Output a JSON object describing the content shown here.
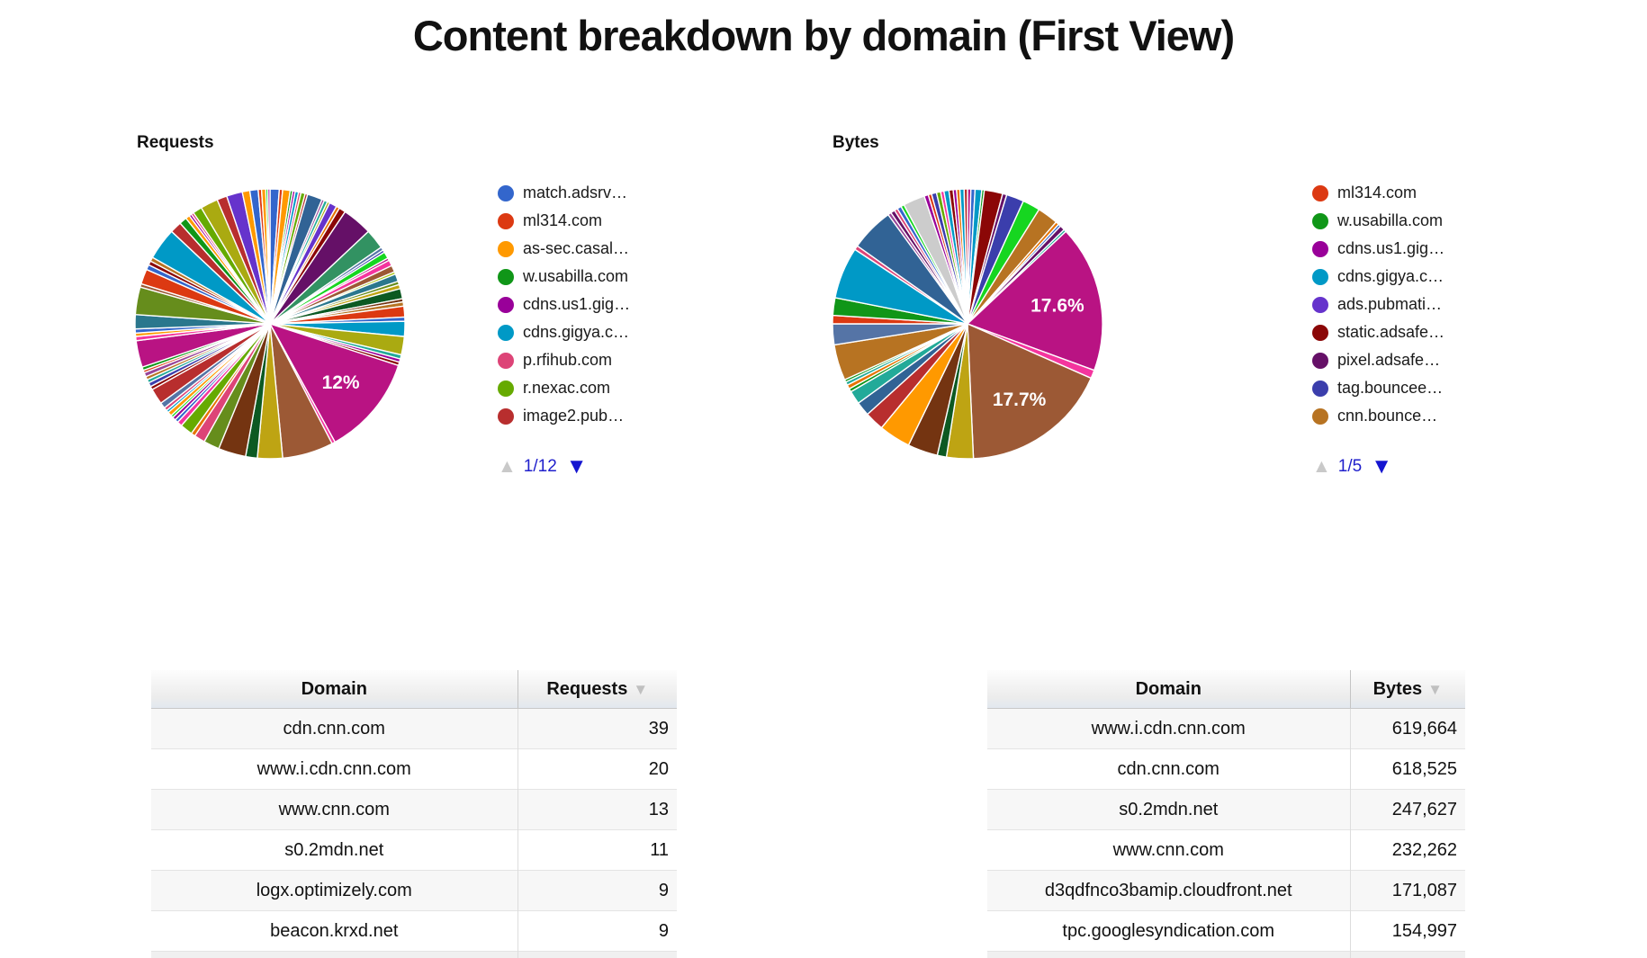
{
  "page": {
    "title": "Content breakdown by domain (First View)"
  },
  "icons": {
    "sort": "▼",
    "prev": "▲",
    "next": "▼"
  },
  "chart_data": [
    {
      "type": "pie",
      "id": "requests",
      "title": "Requests",
      "legend": {
        "page": "1/12",
        "items": [
          {
            "label": "match.adsrv…",
            "color": "#3366CC"
          },
          {
            "label": "ml314.com",
            "color": "#DC3912"
          },
          {
            "label": "as-sec.casal…",
            "color": "#FF9900"
          },
          {
            "label": "w.usabilla.com",
            "color": "#109618"
          },
          {
            "label": "cdns.us1.gig…",
            "color": "#990099"
          },
          {
            "label": "cdns.gigya.c…",
            "color": "#0099C6"
          },
          {
            "label": "p.rfihub.com",
            "color": "#DD4477"
          },
          {
            "label": "r.nexac.com",
            "color": "#66AA00"
          },
          {
            "label": "image2.pub…",
            "color": "#B82E2E"
          }
        ]
      },
      "slices": [
        {
          "v": 1.1,
          "c": "#3366CC"
        },
        {
          "v": 0.4,
          "c": "#DC3912"
        },
        {
          "v": 0.9,
          "c": "#FF9900"
        },
        {
          "v": 0.3,
          "c": "#109618"
        },
        {
          "v": 0.3,
          "c": "#990099"
        },
        {
          "v": 0.4,
          "c": "#0099C6"
        },
        {
          "v": 0.3,
          "c": "#DD4477"
        },
        {
          "v": 0.5,
          "c": "#66AA00"
        },
        {
          "v": 0.3,
          "c": "#B82E2E"
        },
        {
          "v": 1.8,
          "c": "#316395"
        },
        {
          "v": 0.3,
          "c": "#994499"
        },
        {
          "v": 0.4,
          "c": "#22AA99"
        },
        {
          "v": 0.3,
          "c": "#AAAA11"
        },
        {
          "v": 0.9,
          "c": "#6633CC"
        },
        {
          "v": 0.4,
          "c": "#E67300"
        },
        {
          "v": 0.8,
          "c": "#8B0707"
        },
        {
          "v": 3.6,
          "c": "#651067"
        },
        {
          "v": 2.4,
          "c": "#329262"
        },
        {
          "v": 0.4,
          "c": "#5574A6"
        },
        {
          "v": 0.3,
          "c": "#3B3EAC"
        },
        {
          "v": 0.8,
          "c": "#16D620"
        },
        {
          "v": 0.3,
          "c": "#B91383"
        },
        {
          "v": 0.7,
          "c": "#F4359E"
        },
        {
          "v": 0.8,
          "c": "#9C5935"
        },
        {
          "v": 0.3,
          "c": "#A9C413"
        },
        {
          "v": 0.9,
          "c": "#2A778D"
        },
        {
          "v": 0.4,
          "c": "#668D1C"
        },
        {
          "v": 0.5,
          "c": "#BEA413"
        },
        {
          "v": 1.2,
          "c": "#0C5922"
        },
        {
          "v": 0.4,
          "c": "#743411"
        },
        {
          "v": 0.5,
          "c": "#B77322"
        },
        {
          "v": 1.3,
          "c": "#DC3912"
        },
        {
          "v": 0.5,
          "c": "#3366CC"
        },
        {
          "v": 1.8,
          "c": "#0099C6"
        },
        {
          "v": 2.2,
          "c": "#AAAA11"
        },
        {
          "v": 0.5,
          "c": "#22AA99"
        },
        {
          "v": 0.4,
          "c": "#990099"
        },
        {
          "v": 0.4,
          "c": "#8B0707"
        },
        {
          "v": 12.0,
          "c": "#B91383",
          "label": "12%"
        },
        {
          "v": 0.4,
          "c": "#F4359E"
        },
        {
          "v": 6.1,
          "c": "#9C5935"
        },
        {
          "v": 3.0,
          "c": "#BEA413"
        },
        {
          "v": 1.4,
          "c": "#0C5922"
        },
        {
          "v": 3.3,
          "c": "#743411"
        },
        {
          "v": 1.9,
          "c": "#668D1C"
        },
        {
          "v": 1.3,
          "c": "#DD4477"
        },
        {
          "v": 0.5,
          "c": "#E67300"
        },
        {
          "v": 1.5,
          "c": "#66AA00"
        },
        {
          "v": 0.6,
          "c": "#F4359E"
        },
        {
          "v": 0.4,
          "c": "#3366CC"
        },
        {
          "v": 0.4,
          "c": "#990099"
        },
        {
          "v": 0.3,
          "c": "#16D620"
        },
        {
          "v": 0.5,
          "c": "#FF9900"
        },
        {
          "v": 0.3,
          "c": "#0099C6"
        },
        {
          "v": 0.4,
          "c": "#DD4477"
        },
        {
          "v": 0.7,
          "c": "#5574A6"
        },
        {
          "v": 1.9,
          "c": "#B82E2E"
        },
        {
          "v": 0.4,
          "c": "#8B0707"
        },
        {
          "v": 0.5,
          "c": "#3B3EAC"
        },
        {
          "v": 0.4,
          "c": "#22AA99"
        },
        {
          "v": 0.4,
          "c": "#B77322"
        },
        {
          "v": 0.5,
          "c": "#994499"
        },
        {
          "v": 0.3,
          "c": "#DC3912"
        },
        {
          "v": 0.4,
          "c": "#109618"
        },
        {
          "v": 3.2,
          "c": "#B91383"
        },
        {
          "v": 0.5,
          "c": "#F4359E"
        },
        {
          "v": 0.4,
          "c": "#FF9900"
        },
        {
          "v": 0.5,
          "c": "#3366CC"
        },
        {
          "v": 1.7,
          "c": "#2A778D"
        },
        {
          "v": 3.3,
          "c": "#668D1C"
        },
        {
          "v": 0.4,
          "c": "#9C5935"
        },
        {
          "v": 1.8,
          "c": "#DC3912"
        },
        {
          "v": 0.6,
          "c": "#3366CC"
        },
        {
          "v": 0.5,
          "c": "#8B0707"
        },
        {
          "v": 0.5,
          "c": "#B77322"
        },
        {
          "v": 3.8,
          "c": "#0099C6"
        },
        {
          "v": 1.4,
          "c": "#B82E2E"
        },
        {
          "v": 0.9,
          "c": "#109618"
        },
        {
          "v": 0.5,
          "c": "#FF9900"
        },
        {
          "v": 0.3,
          "c": "#990099"
        },
        {
          "v": 0.3,
          "c": "#DD4477"
        },
        {
          "v": 1.1,
          "c": "#66AA00"
        },
        {
          "v": 2.1,
          "c": "#AAAA11"
        },
        {
          "v": 1.2,
          "c": "#B82E2E"
        },
        {
          "v": 1.9,
          "c": "#6633CC"
        },
        {
          "v": 0.9,
          "c": "#FF9900"
        },
        {
          "v": 1.0,
          "c": "#3366CC"
        },
        {
          "v": 0.4,
          "c": "#DC3912"
        },
        {
          "v": 0.5,
          "c": "#FF9900"
        },
        {
          "v": 0.25,
          "c": "#16D620"
        },
        {
          "v": 0.25,
          "c": "#990099"
        }
      ]
    },
    {
      "type": "pie",
      "id": "bytes",
      "title": "Bytes",
      "legend": {
        "page": "1/5",
        "items": [
          {
            "label": "ml314.com",
            "color": "#DC3912"
          },
          {
            "label": "w.usabilla.com",
            "color": "#109618"
          },
          {
            "label": "cdns.us1.gig…",
            "color": "#990099"
          },
          {
            "label": "cdns.gigya.c…",
            "color": "#0099C6"
          },
          {
            "label": "ads.pubmati…",
            "color": "#6633CC"
          },
          {
            "label": "static.adsafe…",
            "color": "#8B0707"
          },
          {
            "label": "pixel.adsafe…",
            "color": "#651067"
          },
          {
            "label": "tag.bouncee…",
            "color": "#3B3EAC"
          },
          {
            "label": "cnn.bounce…",
            "color": "#B77322"
          }
        ]
      },
      "slices": [
        {
          "v": 0.4,
          "c": "#B91383"
        },
        {
          "v": 0.5,
          "c": "#3366CC"
        },
        {
          "v": 0.8,
          "c": "#0099C6"
        },
        {
          "v": 0.3,
          "c": "#109618"
        },
        {
          "v": 2.2,
          "c": "#8B0707"
        },
        {
          "v": 0.5,
          "c": "#651067"
        },
        {
          "v": 2.1,
          "c": "#3B3EAC"
        },
        {
          "v": 2.1,
          "c": "#16D620"
        },
        {
          "v": 2.5,
          "c": "#B77322"
        },
        {
          "v": 0.4,
          "c": "#E67300"
        },
        {
          "v": 0.3,
          "c": "#3366CC"
        },
        {
          "v": 0.6,
          "c": "#651067"
        },
        {
          "v": 0.3,
          "c": "#22AA99"
        },
        {
          "v": 17.6,
          "c": "#B91383",
          "label": "17.6%"
        },
        {
          "v": 1.0,
          "c": "#F4359E"
        },
        {
          "v": 17.7,
          "c": "#9C5935",
          "label": "17.7%"
        },
        {
          "v": 3.2,
          "c": "#BEA413"
        },
        {
          "v": 1.1,
          "c": "#0C5922"
        },
        {
          "v": 3.6,
          "c": "#743411"
        },
        {
          "v": 3.8,
          "c": "#FF9900"
        },
        {
          "v": 2.3,
          "c": "#B82E2E"
        },
        {
          "v": 1.7,
          "c": "#316395"
        },
        {
          "v": 1.6,
          "c": "#22AA99"
        },
        {
          "v": 0.4,
          "c": "#109618"
        },
        {
          "v": 0.5,
          "c": "#E67300"
        },
        {
          "v": 0.4,
          "c": "#22AA99"
        },
        {
          "v": 0.3,
          "c": "#109618"
        },
        {
          "v": 4.3,
          "c": "#B77322"
        },
        {
          "v": 2.5,
          "c": "#5574A6"
        },
        {
          "v": 1.0,
          "c": "#DC3912"
        },
        {
          "v": 2.1,
          "c": "#109618"
        },
        {
          "v": 6.2,
          "c": "#0099C6"
        },
        {
          "v": 0.5,
          "c": "#DD4477"
        },
        {
          "v": 5.2,
          "c": "#316395"
        },
        {
          "v": 0.4,
          "c": "#994499"
        },
        {
          "v": 0.5,
          "c": "#651067"
        },
        {
          "v": 0.4,
          "c": "#DD4477"
        },
        {
          "v": 0.5,
          "c": "#3366CC"
        },
        {
          "v": 0.4,
          "c": "#16D620"
        },
        {
          "v": 2.6,
          "c": "#CCCCCC"
        },
        {
          "v": 0.5,
          "c": "#990099"
        },
        {
          "v": 0.4,
          "c": "#DC3912"
        },
        {
          "v": 0.6,
          "c": "#3B3EAC"
        },
        {
          "v": 0.5,
          "c": "#66AA00"
        },
        {
          "v": 0.4,
          "c": "#F4359E"
        },
        {
          "v": 0.6,
          "c": "#0099C6"
        },
        {
          "v": 0.5,
          "c": "#8B0707"
        },
        {
          "v": 0.4,
          "c": "#990099"
        },
        {
          "v": 0.4,
          "c": "#E67300"
        },
        {
          "v": 0.5,
          "c": "#0099C6"
        },
        {
          "v": 0.4,
          "c": "#B82E2E"
        }
      ]
    }
  ],
  "tables": [
    {
      "id": "requests-table",
      "columns": [
        "Domain",
        "Requests"
      ],
      "rows": [
        {
          "domain": "cdn.cnn.com",
          "value": "39"
        },
        {
          "domain": "www.i.cdn.cnn.com",
          "value": "20"
        },
        {
          "domain": "www.cnn.com",
          "value": "13"
        },
        {
          "domain": "s0.2mdn.net",
          "value": "11"
        },
        {
          "domain": "logx.optimizely.com",
          "value": "9"
        },
        {
          "domain": "beacon.krxd.net",
          "value": "9"
        }
      ]
    },
    {
      "id": "bytes-table",
      "columns": [
        "Domain",
        "Bytes"
      ],
      "rows": [
        {
          "domain": "www.i.cdn.cnn.com",
          "value": "619,664"
        },
        {
          "domain": "cdn.cnn.com",
          "value": "618,525"
        },
        {
          "domain": "s0.2mdn.net",
          "value": "247,627"
        },
        {
          "domain": "www.cnn.com",
          "value": "232,262"
        },
        {
          "domain": "d3qdfnco3bamip.cloudfront.net",
          "value": "171,087"
        },
        {
          "domain": "tpc.googlesyndication.com",
          "value": "154,997"
        }
      ]
    }
  ]
}
